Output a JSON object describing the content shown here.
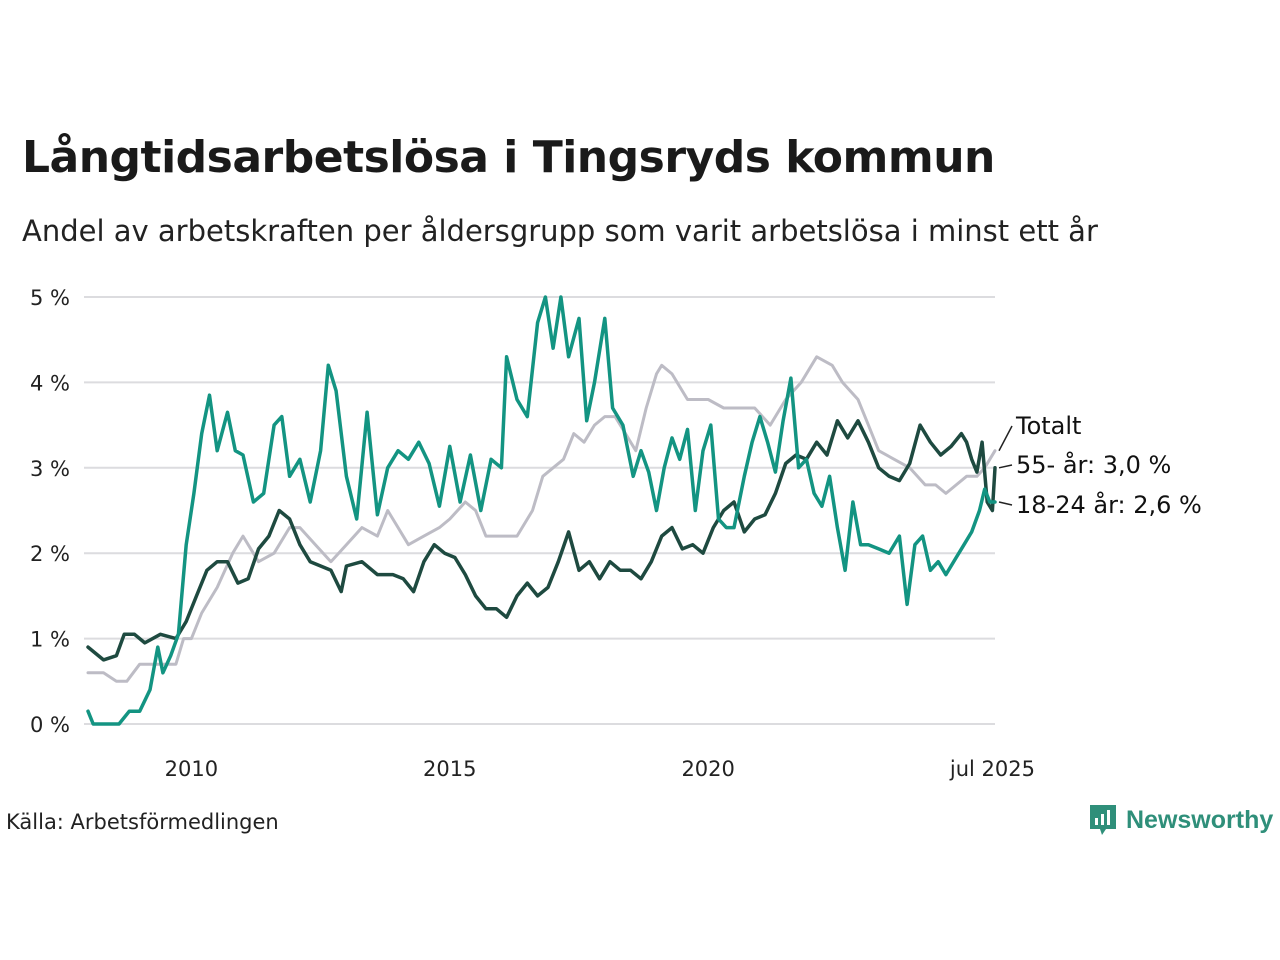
{
  "header": {
    "title": "Långtidsarbetslösa i Tingsryds kommun",
    "subtitle": "Andel av arbetskraften per åldersgrupp som varit arbetslösa i minst ett år"
  },
  "footer": {
    "source": "Källa: Arbetsförmedlingen",
    "brand": "Newsworthy",
    "brand_color": "#2f8f7a"
  },
  "chart_data": {
    "type": "line",
    "title": "Långtidsarbetslösa i Tingsryds kommun",
    "subtitle": "Andel av arbetskraften per åldersgrupp som varit arbetslösa i minst ett år",
    "xlabel": "",
    "ylabel": "",
    "xlim": [
      2008.0,
      2025.55
    ],
    "ylim": [
      0,
      5
    ],
    "y_ticks": [
      0,
      1,
      2,
      3,
      4,
      5
    ],
    "y_tick_labels": [
      "0 %",
      "1 %",
      "2 %",
      "3 %",
      "4 %",
      "5 %"
    ],
    "x_ticks": [
      2010,
      2015,
      2020,
      2025.5
    ],
    "x_tick_labels": [
      "2010",
      "2015",
      "2020",
      "jul 2025"
    ],
    "grid": "horizontal",
    "series": [
      {
        "name": "Totalt",
        "label": "Totalt",
        "color": "#bdbcc5",
        "points": [
          [
            2008.0,
            0.6
          ],
          [
            2008.3,
            0.6
          ],
          [
            2008.55,
            0.5
          ],
          [
            2008.75,
            0.5
          ],
          [
            2009.0,
            0.7
          ],
          [
            2009.4,
            0.7
          ],
          [
            2009.7,
            0.7
          ],
          [
            2009.85,
            1.0
          ],
          [
            2010.0,
            1.0
          ],
          [
            2010.2,
            1.3
          ],
          [
            2010.5,
            1.6
          ],
          [
            2010.8,
            2.0
          ],
          [
            2011.0,
            2.2
          ],
          [
            2011.3,
            1.9
          ],
          [
            2011.6,
            2.0
          ],
          [
            2011.9,
            2.3
          ],
          [
            2012.1,
            2.3
          ],
          [
            2012.4,
            2.1
          ],
          [
            2012.7,
            1.9
          ],
          [
            2013.0,
            2.1
          ],
          [
            2013.3,
            2.3
          ],
          [
            2013.6,
            2.2
          ],
          [
            2013.8,
            2.5
          ],
          [
            2014.0,
            2.3
          ],
          [
            2014.2,
            2.1
          ],
          [
            2014.5,
            2.2
          ],
          [
            2014.8,
            2.3
          ],
          [
            2015.0,
            2.4
          ],
          [
            2015.3,
            2.6
          ],
          [
            2015.5,
            2.5
          ],
          [
            2015.7,
            2.2
          ],
          [
            2016.0,
            2.2
          ],
          [
            2016.3,
            2.2
          ],
          [
            2016.6,
            2.5
          ],
          [
            2016.8,
            2.9
          ],
          [
            2017.0,
            3.0
          ],
          [
            2017.2,
            3.1
          ],
          [
            2017.4,
            3.4
          ],
          [
            2017.6,
            3.3
          ],
          [
            2017.8,
            3.5
          ],
          [
            2018.0,
            3.6
          ],
          [
            2018.2,
            3.6
          ],
          [
            2018.4,
            3.4
          ],
          [
            2018.6,
            3.2
          ],
          [
            2018.8,
            3.7
          ],
          [
            2019.0,
            4.1
          ],
          [
            2019.1,
            4.2
          ],
          [
            2019.3,
            4.1
          ],
          [
            2019.6,
            3.8
          ],
          [
            2019.8,
            3.8
          ],
          [
            2020.0,
            3.8
          ],
          [
            2020.3,
            3.7
          ],
          [
            2020.6,
            3.7
          ],
          [
            2020.9,
            3.7
          ],
          [
            2021.2,
            3.5
          ],
          [
            2021.5,
            3.8
          ],
          [
            2021.8,
            4.0
          ],
          [
            2022.1,
            4.3
          ],
          [
            2022.4,
            4.2
          ],
          [
            2022.6,
            4.0
          ],
          [
            2022.9,
            3.8
          ],
          [
            2023.1,
            3.5
          ],
          [
            2023.3,
            3.2
          ],
          [
            2023.6,
            3.1
          ],
          [
            2023.9,
            3.0
          ],
          [
            2024.2,
            2.8
          ],
          [
            2024.4,
            2.8
          ],
          [
            2024.6,
            2.7
          ],
          [
            2024.8,
            2.8
          ],
          [
            2025.0,
            2.9
          ],
          [
            2025.2,
            2.9
          ],
          [
            2025.35,
            3.0
          ],
          [
            2025.45,
            3.1
          ],
          [
            2025.55,
            3.2
          ]
        ]
      },
      {
        "name": "55- år",
        "label": "55- år: 3,0 %",
        "color": "#1e4a40",
        "points": [
          [
            2008.0,
            0.9
          ],
          [
            2008.3,
            0.75
          ],
          [
            2008.55,
            0.8
          ],
          [
            2008.7,
            1.05
          ],
          [
            2008.9,
            1.05
          ],
          [
            2009.1,
            0.95
          ],
          [
            2009.4,
            1.05
          ],
          [
            2009.7,
            1.0
          ],
          [
            2009.9,
            1.2
          ],
          [
            2010.1,
            1.5
          ],
          [
            2010.3,
            1.8
          ],
          [
            2010.5,
            1.9
          ],
          [
            2010.7,
            1.9
          ],
          [
            2010.9,
            1.65
          ],
          [
            2011.1,
            1.7
          ],
          [
            2011.3,
            2.05
          ],
          [
            2011.5,
            2.2
          ],
          [
            2011.7,
            2.5
          ],
          [
            2011.9,
            2.4
          ],
          [
            2012.1,
            2.1
          ],
          [
            2012.3,
            1.9
          ],
          [
            2012.5,
            1.85
          ],
          [
            2012.7,
            1.8
          ],
          [
            2012.9,
            1.55
          ],
          [
            2013.0,
            1.85
          ],
          [
            2013.3,
            1.9
          ],
          [
            2013.6,
            1.75
          ],
          [
            2013.9,
            1.75
          ],
          [
            2014.1,
            1.7
          ],
          [
            2014.3,
            1.55
          ],
          [
            2014.5,
            1.9
          ],
          [
            2014.7,
            2.1
          ],
          [
            2014.9,
            2.0
          ],
          [
            2015.1,
            1.95
          ],
          [
            2015.3,
            1.75
          ],
          [
            2015.5,
            1.5
          ],
          [
            2015.7,
            1.35
          ],
          [
            2015.9,
            1.35
          ],
          [
            2016.1,
            1.25
          ],
          [
            2016.3,
            1.5
          ],
          [
            2016.5,
            1.65
          ],
          [
            2016.7,
            1.5
          ],
          [
            2016.9,
            1.6
          ],
          [
            2017.1,
            1.9
          ],
          [
            2017.3,
            2.25
          ],
          [
            2017.5,
            1.8
          ],
          [
            2017.7,
            1.9
          ],
          [
            2017.9,
            1.7
          ],
          [
            2018.1,
            1.9
          ],
          [
            2018.3,
            1.8
          ],
          [
            2018.5,
            1.8
          ],
          [
            2018.7,
            1.7
          ],
          [
            2018.9,
            1.9
          ],
          [
            2019.1,
            2.2
          ],
          [
            2019.3,
            2.3
          ],
          [
            2019.5,
            2.05
          ],
          [
            2019.7,
            2.1
          ],
          [
            2019.9,
            2.0
          ],
          [
            2020.1,
            2.3
          ],
          [
            2020.3,
            2.5
          ],
          [
            2020.5,
            2.6
          ],
          [
            2020.7,
            2.25
          ],
          [
            2020.9,
            2.4
          ],
          [
            2021.1,
            2.45
          ],
          [
            2021.3,
            2.7
          ],
          [
            2021.5,
            3.05
          ],
          [
            2021.7,
            3.15
          ],
          [
            2021.9,
            3.1
          ],
          [
            2022.1,
            3.3
          ],
          [
            2022.3,
            3.15
          ],
          [
            2022.5,
            3.55
          ],
          [
            2022.7,
            3.35
          ],
          [
            2022.9,
            3.55
          ],
          [
            2023.1,
            3.3
          ],
          [
            2023.3,
            3.0
          ],
          [
            2023.5,
            2.9
          ],
          [
            2023.7,
            2.85
          ],
          [
            2023.9,
            3.05
          ],
          [
            2024.1,
            3.5
          ],
          [
            2024.3,
            3.3
          ],
          [
            2024.5,
            3.15
          ],
          [
            2024.7,
            3.25
          ],
          [
            2024.9,
            3.4
          ],
          [
            2025.0,
            3.3
          ],
          [
            2025.1,
            3.1
          ],
          [
            2025.2,
            2.95
          ],
          [
            2025.3,
            3.3
          ],
          [
            2025.4,
            2.6
          ],
          [
            2025.5,
            2.5
          ],
          [
            2025.55,
            3.0
          ]
        ]
      },
      {
        "name": "18-24 år",
        "label": "18-24 år: 2,6 %",
        "color": "#139482",
        "points": [
          [
            2008.0,
            0.15
          ],
          [
            2008.1,
            0.0
          ],
          [
            2008.6,
            0.0
          ],
          [
            2008.8,
            0.15
          ],
          [
            2009.0,
            0.15
          ],
          [
            2009.2,
            0.4
          ],
          [
            2009.35,
            0.9
          ],
          [
            2009.45,
            0.6
          ],
          [
            2009.6,
            0.8
          ],
          [
            2009.75,
            1.05
          ],
          [
            2009.9,
            2.1
          ],
          [
            2010.05,
            2.7
          ],
          [
            2010.2,
            3.4
          ],
          [
            2010.35,
            3.85
          ],
          [
            2010.5,
            3.2
          ],
          [
            2010.7,
            3.65
          ],
          [
            2010.85,
            3.2
          ],
          [
            2011.0,
            3.15
          ],
          [
            2011.2,
            2.6
          ],
          [
            2011.4,
            2.7
          ],
          [
            2011.6,
            3.5
          ],
          [
            2011.75,
            3.6
          ],
          [
            2011.9,
            2.9
          ],
          [
            2012.1,
            3.1
          ],
          [
            2012.3,
            2.6
          ],
          [
            2012.5,
            3.2
          ],
          [
            2012.65,
            4.2
          ],
          [
            2012.8,
            3.9
          ],
          [
            2013.0,
            2.9
          ],
          [
            2013.2,
            2.4
          ],
          [
            2013.4,
            3.65
          ],
          [
            2013.6,
            2.45
          ],
          [
            2013.8,
            3.0
          ],
          [
            2014.0,
            3.2
          ],
          [
            2014.2,
            3.1
          ],
          [
            2014.4,
            3.3
          ],
          [
            2014.6,
            3.05
          ],
          [
            2014.8,
            2.55
          ],
          [
            2015.0,
            3.25
          ],
          [
            2015.2,
            2.6
          ],
          [
            2015.4,
            3.15
          ],
          [
            2015.6,
            2.5
          ],
          [
            2015.8,
            3.1
          ],
          [
            2016.0,
            3.0
          ],
          [
            2016.1,
            4.3
          ],
          [
            2016.3,
            3.8
          ],
          [
            2016.5,
            3.6
          ],
          [
            2016.7,
            4.7
          ],
          [
            2016.85,
            5.0
          ],
          [
            2017.0,
            4.4
          ],
          [
            2017.15,
            5.0
          ],
          [
            2017.3,
            4.3
          ],
          [
            2017.5,
            4.75
          ],
          [
            2017.65,
            3.55
          ],
          [
            2017.8,
            4.0
          ],
          [
            2018.0,
            4.75
          ],
          [
            2018.15,
            3.7
          ],
          [
            2018.35,
            3.5
          ],
          [
            2018.55,
            2.9
          ],
          [
            2018.7,
            3.2
          ],
          [
            2018.85,
            2.95
          ],
          [
            2019.0,
            2.5
          ],
          [
            2019.15,
            3.0
          ],
          [
            2019.3,
            3.35
          ],
          [
            2019.45,
            3.1
          ],
          [
            2019.6,
            3.45
          ],
          [
            2019.75,
            2.5
          ],
          [
            2019.9,
            3.2
          ],
          [
            2020.05,
            3.5
          ],
          [
            2020.2,
            2.4
          ],
          [
            2020.35,
            2.3
          ],
          [
            2020.5,
            2.3
          ],
          [
            2020.7,
            2.9
          ],
          [
            2020.85,
            3.3
          ],
          [
            2021.0,
            3.6
          ],
          [
            2021.15,
            3.3
          ],
          [
            2021.3,
            2.95
          ],
          [
            2021.45,
            3.55
          ],
          [
            2021.6,
            4.05
          ],
          [
            2021.75,
            3.0
          ],
          [
            2021.9,
            3.1
          ],
          [
            2022.05,
            2.7
          ],
          [
            2022.2,
            2.55
          ],
          [
            2022.35,
            2.9
          ],
          [
            2022.5,
            2.3
          ],
          [
            2022.65,
            1.8
          ],
          [
            2022.8,
            2.6
          ],
          [
            2022.95,
            2.1
          ],
          [
            2023.1,
            2.1
          ],
          [
            2023.3,
            2.05
          ],
          [
            2023.5,
            2.0
          ],
          [
            2023.7,
            2.2
          ],
          [
            2023.85,
            1.4
          ],
          [
            2024.0,
            2.1
          ],
          [
            2024.15,
            2.2
          ],
          [
            2024.3,
            1.8
          ],
          [
            2024.45,
            1.9
          ],
          [
            2024.6,
            1.75
          ],
          [
            2024.8,
            1.95
          ],
          [
            2024.95,
            2.1
          ],
          [
            2025.1,
            2.25
          ],
          [
            2025.25,
            2.5
          ],
          [
            2025.35,
            2.75
          ],
          [
            2025.45,
            2.6
          ],
          [
            2025.55,
            2.6
          ]
        ]
      }
    ]
  }
}
